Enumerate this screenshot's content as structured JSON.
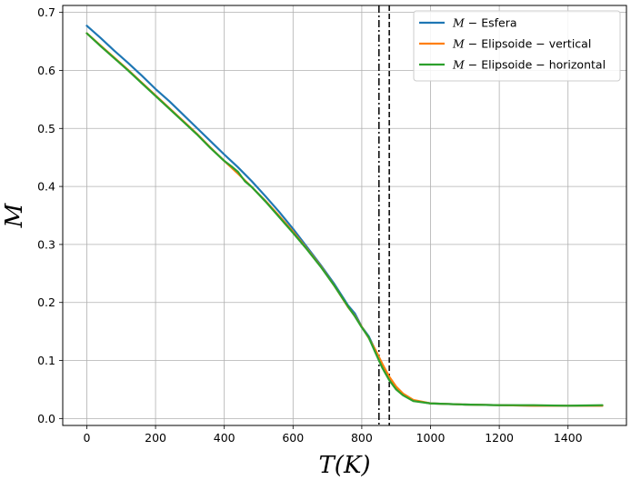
{
  "chart_data": {
    "type": "line",
    "title": "",
    "xlabel": "T(K)",
    "ylabel": "M",
    "xlim": [
      -70,
      1570
    ],
    "ylim": [
      -0.012,
      0.712
    ],
    "xticks": [
      0,
      200,
      400,
      600,
      800,
      1000,
      1200,
      1400
    ],
    "yticks": [
      0.0,
      0.1,
      0.2,
      0.3,
      0.4,
      0.5,
      0.6,
      0.7
    ],
    "xtick_labels": [
      "0",
      "200",
      "400",
      "600",
      "800",
      "1000",
      "1200",
      "1400"
    ],
    "ytick_labels": [
      "0.0",
      "0.1",
      "0.2",
      "0.3",
      "0.4",
      "0.5",
      "0.6",
      "0.7"
    ],
    "grid": true,
    "legend_position": "top-right",
    "vlines": [
      {
        "x": 850,
        "style": "dashdot",
        "color": "#000000"
      },
      {
        "x": 880,
        "style": "dashed",
        "color": "#000000"
      }
    ],
    "series": [
      {
        "name": "M − Esfera",
        "legend_italic": "M",
        "legend_rest": " − Esfera",
        "color": "#1f77b4",
        "x": [
          0,
          40,
          80,
          120,
          160,
          200,
          240,
          280,
          320,
          360,
          400,
          440,
          480,
          520,
          560,
          600,
          640,
          680,
          720,
          760,
          780,
          800,
          820,
          840,
          860,
          880,
          900,
          920,
          950,
          1000,
          1100,
          1200,
          1300,
          1400,
          1500
        ],
        "values": [
          0.677,
          0.656,
          0.634,
          0.613,
          0.591,
          0.568,
          0.547,
          0.524,
          0.501,
          0.478,
          0.455,
          0.433,
          0.409,
          0.383,
          0.356,
          0.327,
          0.296,
          0.265,
          0.232,
          0.195,
          0.181,
          0.158,
          0.142,
          0.117,
          0.088,
          0.068,
          0.053,
          0.042,
          0.031,
          0.026,
          0.024,
          0.023,
          0.022,
          0.022,
          0.022
        ]
      },
      {
        "name": "M − Elipsoide − vertical",
        "legend_italic": "M",
        "legend_rest": " − Elipsoide − vertical",
        "color": "#ff7f0e",
        "x": [
          0,
          40,
          80,
          120,
          160,
          200,
          240,
          280,
          320,
          360,
          400,
          440,
          480,
          520,
          560,
          600,
          640,
          680,
          720,
          760,
          780,
          800,
          820,
          840,
          860,
          880,
          900,
          920,
          950,
          1000,
          1100,
          1200,
          1300,
          1400,
          1500
        ],
        "values": [
          0.664,
          0.643,
          0.622,
          0.601,
          0.579,
          0.557,
          0.535,
          0.513,
          0.491,
          0.467,
          0.444,
          0.422,
          0.399,
          0.375,
          0.349,
          0.322,
          0.293,
          0.263,
          0.229,
          0.192,
          0.177,
          0.158,
          0.139,
          0.118,
          0.094,
          0.072,
          0.055,
          0.043,
          0.032,
          0.026,
          0.024,
          0.023,
          0.022,
          0.022,
          0.022
        ]
      },
      {
        "name": "M − Elipsoide − horizontal",
        "legend_italic": "M",
        "legend_rest": " − Elipsoide − horizontal",
        "color": "#2ca02c",
        "x": [
          0,
          40,
          80,
          120,
          160,
          200,
          240,
          280,
          320,
          360,
          400,
          420,
          440,
          460,
          480,
          520,
          560,
          600,
          640,
          680,
          720,
          760,
          780,
          800,
          820,
          840,
          860,
          880,
          900,
          920,
          950,
          1000,
          1100,
          1200,
          1300,
          1400,
          1500
        ],
        "values": [
          0.664,
          0.642,
          0.621,
          0.6,
          0.578,
          0.556,
          0.534,
          0.512,
          0.49,
          0.466,
          0.444,
          0.435,
          0.425,
          0.409,
          0.399,
          0.374,
          0.347,
          0.32,
          0.292,
          0.262,
          0.229,
          0.193,
          0.176,
          0.157,
          0.14,
          0.113,
          0.087,
          0.066,
          0.05,
          0.04,
          0.03,
          0.026,
          0.024,
          0.023,
          0.023,
          0.022,
          0.023
        ]
      }
    ]
  }
}
